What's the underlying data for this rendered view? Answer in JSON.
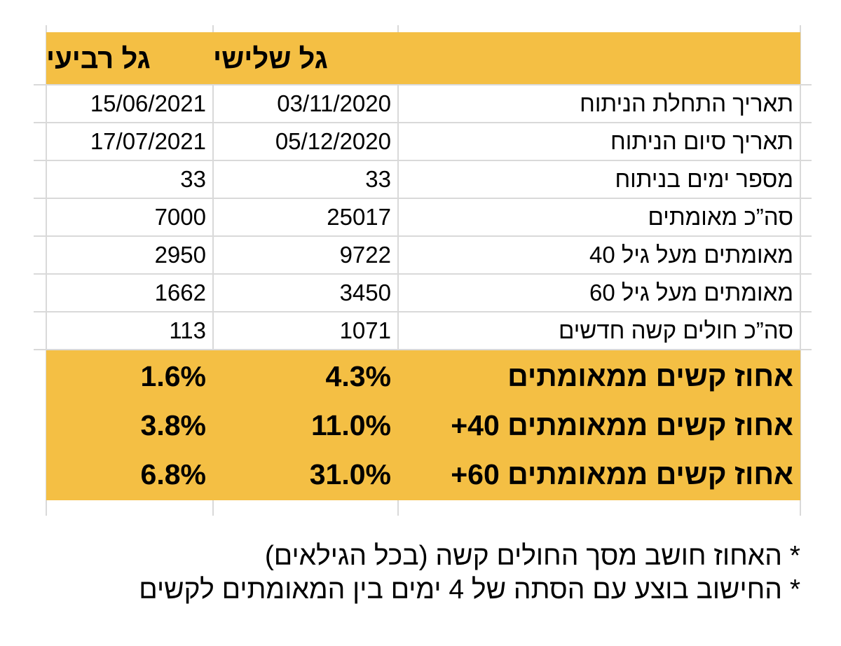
{
  "table": {
    "headers": {
      "label": "",
      "wave3": "גל שלישי",
      "wave4": "גל רביעי"
    },
    "rows": [
      {
        "label": "תאריך התחלת הניתוח",
        "wave3": "03/11/2020",
        "wave4": "15/06/2021"
      },
      {
        "label": "תאריך סיום הניתוח",
        "wave3": "05/12/2020",
        "wave4": "17/07/2021"
      },
      {
        "label": "מספר ימים בניתוח",
        "wave3": "33",
        "wave4": "33"
      },
      {
        "label": "סה”כ מאומתים",
        "wave3": "25017",
        "wave4": "7000"
      },
      {
        "label": "מאומתים מעל גיל 40",
        "wave3": "9722",
        "wave4": "2950"
      },
      {
        "label": "מאומתים מעל גיל 60",
        "wave3": "3450",
        "wave4": "1662"
      },
      {
        "label": "סה”כ חולים קשה חדשים",
        "wave3": "1071",
        "wave4": "113"
      }
    ],
    "percent_rows": [
      {
        "label": "אחוז קשים ממאומתים",
        "wave3": "4.3%",
        "wave4": "1.6%"
      },
      {
        "label": "אחוז קשים ממאומתים 40+",
        "wave3": "11.0%",
        "wave4": "3.8%"
      },
      {
        "label": "אחוז קשים ממאומתים 60+",
        "wave3": "31.0%",
        "wave4": "6.8%"
      }
    ]
  },
  "footnotes": [
    "* האחוז חושב מסך החולים קשה (בכל הגילאים)",
    "* החישוב בוצע עם הסתה של 4 ימים בין המאומתים לקשים"
  ],
  "colors": {
    "highlight": "#f4bf44",
    "gridline": "#d9d9d9"
  }
}
